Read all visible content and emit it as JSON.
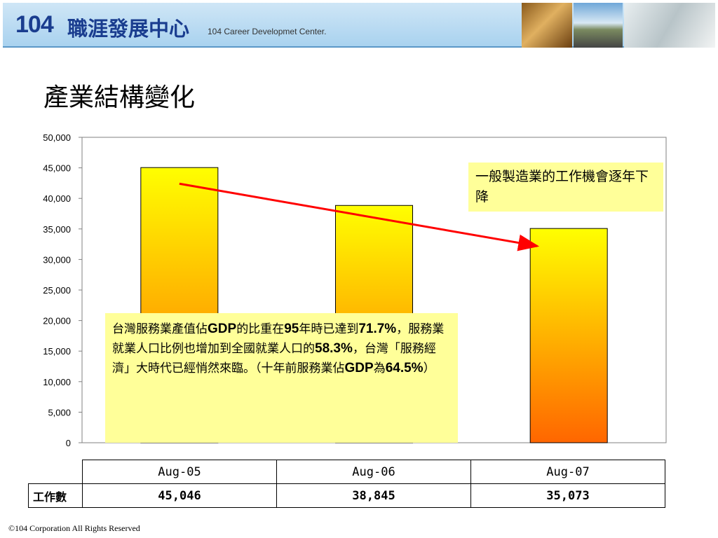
{
  "header": {
    "logo_number": "104",
    "logo_chinese": "職涯發展中心",
    "logo_english": "104 Career Developmet Center."
  },
  "slide_title": "產業結構變化",
  "chart_data": {
    "type": "bar",
    "categories": [
      "Aug-05",
      "Aug-06",
      "Aug-07"
    ],
    "series": [
      {
        "values": [
          45046,
          38845,
          35073
        ]
      }
    ],
    "ylim": [
      0,
      50000
    ],
    "yticks": [
      "0",
      "5,000",
      "10,000",
      "15,000",
      "20,000",
      "25,000",
      "30,000",
      "35,000",
      "40,000",
      "45,000",
      "50,000"
    ],
    "bar_gradient": [
      "#ffff00",
      "#ff6600"
    ],
    "trend_arrow_color": "#ff0000",
    "trend_arrow": {
      "from": {
        "category": "Aug-05",
        "y": 42400
      },
      "to": {
        "category": "Aug-07",
        "y": 32200
      }
    },
    "grid": false
  },
  "notes": {
    "top": "一般製造業的工作機會逐年下降",
    "main": [
      {
        "t": "台灣服務業產值佔",
        "b": false
      },
      {
        "t": "GDP",
        "b": true
      },
      {
        "t": "的比重在",
        "b": false
      },
      {
        "t": "95",
        "b": true
      },
      {
        "t": "年時已達到",
        "b": false
      },
      {
        "t": "71.7%",
        "b": true
      },
      {
        "t": "，服務業就業人口比例也增加到全國就業人口的",
        "b": false
      },
      {
        "t": "58.3%",
        "b": true
      },
      {
        "t": "，台灣「服務經濟」大時代已經悄然來臨。（十年前服務業佔",
        "b": false
      },
      {
        "t": "GDP",
        "b": true
      },
      {
        "t": "為",
        "b": false
      },
      {
        "t": "64.5%",
        "b": true
      },
      {
        "t": "）",
        "b": false
      }
    ]
  },
  "table": {
    "headers": [
      "Aug-05",
      "Aug-06",
      "Aug-07"
    ],
    "row_label": "工作數",
    "values": [
      "45,046",
      "38,845",
      "35,073"
    ]
  },
  "footer": "©104 Corporation All Rights Reserved",
  "colors": {
    "header_bg": "#a9d2ef",
    "logo": "#1a3d8f",
    "note_bg": "#ffff99"
  }
}
